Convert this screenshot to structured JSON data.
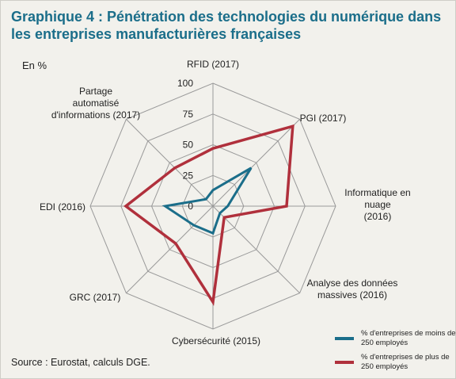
{
  "header": {
    "title": "Graphique 4 : Pénétration des technologies du numérique dans les entreprises manufacturières françaises",
    "unit": "En %"
  },
  "footer": {
    "source": "Source : Eurostat, calculs DGE."
  },
  "colors": {
    "series_small": "#1b6e8a",
    "series_large": "#b0303c",
    "grid": "#9a9a9a",
    "title": "#1b6e8a"
  },
  "chart_data": {
    "type": "radar",
    "title": "Pénétration des technologies du numérique dans les entreprises manufacturières françaises",
    "unit": "En %",
    "axes": [
      "RFID (2017)",
      "PGI (2017)",
      "Informatique en nuage (2016)",
      "Analyse des données massives (2016)",
      "Cybersécurité (2015)",
      "GRC (2017)",
      "EDI (2016)",
      "Partage automatisé d'informations (2017)"
    ],
    "range": [
      0,
      100
    ],
    "ticks": [
      0,
      25,
      50,
      75,
      100
    ],
    "grid": true,
    "legend_position": "bottom-right",
    "series": [
      {
        "name": "% d'entreprises de moins de 250 employés",
        "color": "#1b6e8a",
        "values": [
          13,
          44,
          12,
          8,
          22,
          22,
          39,
          8
        ]
      },
      {
        "name": "% d'entreprises de plus de 250 employés",
        "color": "#b0303c",
        "values": [
          47,
          92,
          60,
          13,
          78,
          43,
          71,
          44
        ]
      }
    ]
  }
}
